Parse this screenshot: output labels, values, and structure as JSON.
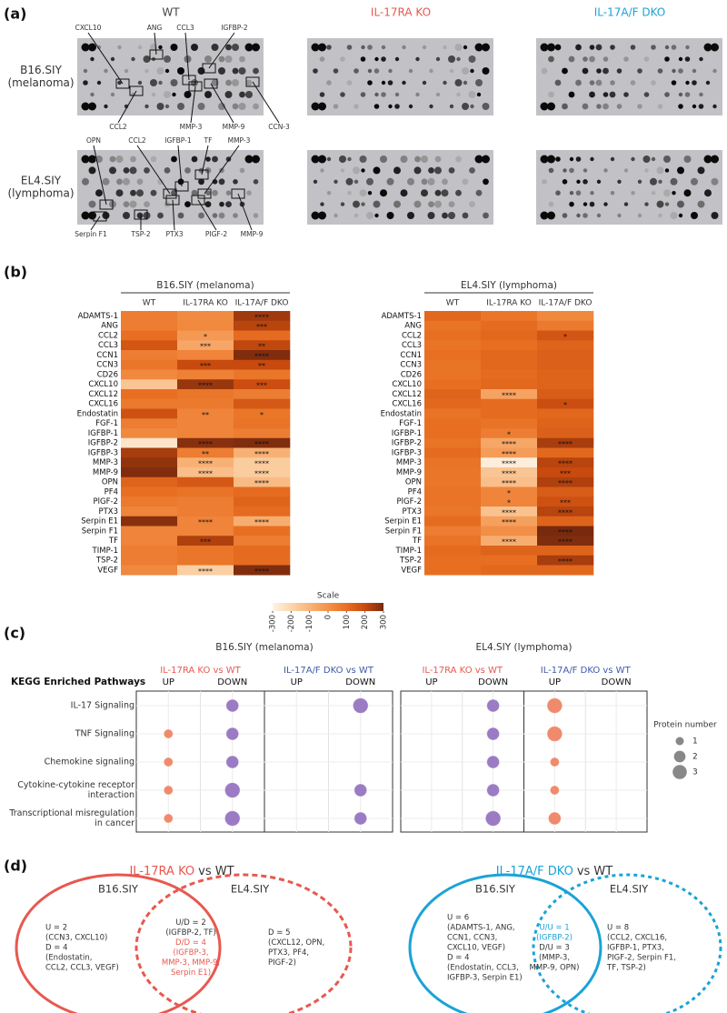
{
  "panel_labels": [
    "(a)",
    "(b)",
    "(c)",
    "(d)"
  ],
  "blots": {
    "columns": [
      {
        "label": "WT",
        "color": "#444444"
      },
      {
        "label": "IL-17RA KO",
        "color": "#e8584e"
      },
      {
        "label": "IL-17A/F DKO",
        "color": "#1aa3d6"
      }
    ],
    "rows": [
      {
        "label": [
          "B16.SIY",
          "(melanoma)"
        ],
        "annotations": [
          "CXCL10",
          "ANG",
          "CCL3",
          "IGFBP-2",
          "CCL2",
          "MMP-3",
          "MMP-9",
          "CCN-3"
        ]
      },
      {
        "label": [
          "EL4.SIY",
          "(lymphoma)"
        ],
        "annotations": [
          "OPN",
          "CCL2",
          "IGFBP-1",
          "TF",
          "MMP-3",
          "Serpin F1",
          "TSP-2",
          "PTX3",
          "PIGF-2",
          "MMP-9"
        ]
      }
    ]
  },
  "heatmaps": [
    {
      "title": "B16.SIY (melanoma)",
      "columns": [
        "WT",
        "IL-17RA KO",
        "IL-17A/F DKO"
      ],
      "rows": [
        {
          "name": "ADAMTS-1",
          "values": [
            60,
            20,
            250
          ],
          "stars": [
            null,
            null,
            "****"
          ]
        },
        {
          "name": "ANG",
          "values": [
            60,
            30,
            220
          ],
          "stars": [
            null,
            null,
            "***"
          ]
        },
        {
          "name": "CCL2",
          "values": [
            100,
            -20,
            110
          ],
          "stars": [
            null,
            "*",
            null
          ]
        },
        {
          "name": "CCL3",
          "values": [
            170,
            -60,
            210
          ],
          "stars": [
            null,
            "***",
            "**"
          ]
        },
        {
          "name": "CCN1",
          "values": [
            60,
            40,
            290
          ],
          "stars": [
            null,
            null,
            "****"
          ]
        },
        {
          "name": "CCN3",
          "values": [
            80,
            200,
            200
          ],
          "stars": [
            null,
            "***",
            "**"
          ]
        },
        {
          "name": "CD26",
          "values": [
            30,
            50,
            80
          ],
          "stars": [
            null,
            null,
            null
          ]
        },
        {
          "name": "CXCL10",
          "values": [
            -150,
            260,
            190
          ],
          "stars": [
            null,
            "****",
            "***"
          ]
        },
        {
          "name": "CXCL12",
          "values": [
            100,
            80,
            60
          ],
          "stars": [
            null,
            null,
            null
          ]
        },
        {
          "name": "CXCL16",
          "values": [
            70,
            70,
            160
          ],
          "stars": [
            null,
            null,
            null
          ]
        },
        {
          "name": "Endostatin",
          "values": [
            180,
            40,
            80
          ],
          "stars": [
            null,
            "**",
            "*"
          ]
        },
        {
          "name": "FGF-1",
          "values": [
            60,
            40,
            90
          ],
          "stars": [
            null,
            null,
            null
          ]
        },
        {
          "name": "IGFBP-1",
          "values": [
            30,
            40,
            60
          ],
          "stars": [
            null,
            null,
            null
          ]
        },
        {
          "name": "IGFBP-2",
          "values": [
            -250,
            280,
            290
          ],
          "stars": [
            null,
            "****",
            "****"
          ]
        },
        {
          "name": "IGFBP-3",
          "values": [
            240,
            60,
            -90
          ],
          "stars": [
            null,
            "**",
            "****"
          ]
        },
        {
          "name": "MMP-3",
          "values": [
            270,
            -90,
            -170
          ],
          "stars": [
            null,
            "****",
            "****"
          ]
        },
        {
          "name": "MMP-9",
          "values": [
            290,
            -130,
            -170
          ],
          "stars": [
            null,
            "****",
            "****"
          ]
        },
        {
          "name": "OPN",
          "values": [
            130,
            160,
            -120
          ],
          "stars": [
            null,
            null,
            "****"
          ]
        },
        {
          "name": "PF4",
          "values": [
            100,
            90,
            110
          ],
          "stars": [
            null,
            null,
            null
          ]
        },
        {
          "name": "PlGF-2",
          "values": [
            70,
            60,
            130
          ],
          "stars": [
            null,
            null,
            null
          ]
        },
        {
          "name": "PTX3",
          "values": [
            40,
            60,
            110
          ],
          "stars": [
            null,
            null,
            null
          ]
        },
        {
          "name": "Serpin E1",
          "values": [
            280,
            40,
            -80
          ],
          "stars": [
            null,
            "****",
            "****"
          ]
        },
        {
          "name": "Serpin F1",
          "values": [
            40,
            40,
            100
          ],
          "stars": [
            null,
            null,
            null
          ]
        },
        {
          "name": "TF",
          "values": [
            40,
            230,
            60
          ],
          "stars": [
            null,
            "***",
            null
          ]
        },
        {
          "name": "TIMP-1",
          "values": [
            60,
            80,
            110
          ],
          "stars": [
            null,
            null,
            null
          ]
        },
        {
          "name": "TSP-2",
          "values": [
            60,
            80,
            110
          ],
          "stars": [
            null,
            null,
            null
          ]
        },
        {
          "name": "VEGF",
          "values": [
            30,
            -180,
            290
          ],
          "stars": [
            null,
            "****",
            "****"
          ]
        }
      ]
    },
    {
      "title": "EL4.SIY (lymphoma)",
      "columns": [
        "WT",
        "IL-17RA KO",
        "IL-17A/F DKO"
      ],
      "rows": [
        {
          "name": "ADAMTS-1",
          "values": [
            120,
            80,
            30
          ],
          "stars": [
            null,
            null,
            null
          ]
        },
        {
          "name": "ANG",
          "values": [
            90,
            110,
            70
          ],
          "stars": [
            null,
            null,
            null
          ]
        },
        {
          "name": "CCL2",
          "values": [
            100,
            120,
            170
          ],
          "stars": [
            null,
            null,
            "*"
          ]
        },
        {
          "name": "CCL3",
          "values": [
            90,
            100,
            130
          ],
          "stars": [
            null,
            null,
            null
          ]
        },
        {
          "name": "CCN1",
          "values": [
            100,
            120,
            140
          ],
          "stars": [
            null,
            null,
            null
          ]
        },
        {
          "name": "CCN3",
          "values": [
            90,
            120,
            140
          ],
          "stars": [
            null,
            null,
            null
          ]
        },
        {
          "name": "CD26",
          "values": [
            90,
            110,
            130
          ],
          "stars": [
            null,
            null,
            null
          ]
        },
        {
          "name": "CXCL10",
          "values": [
            100,
            120,
            130
          ],
          "stars": [
            null,
            null,
            null
          ]
        },
        {
          "name": "CXCL12",
          "values": [
            130,
            -50,
            150
          ],
          "stars": [
            null,
            "****",
            null
          ]
        },
        {
          "name": "CXCL16",
          "values": [
            120,
            110,
            190
          ],
          "stars": [
            null,
            null,
            "*"
          ]
        },
        {
          "name": "Endostatin",
          "values": [
            90,
            110,
            120
          ],
          "stars": [
            null,
            null,
            null
          ]
        },
        {
          "name": "FGF-1",
          "values": [
            100,
            90,
            130
          ],
          "stars": [
            null,
            null,
            null
          ]
        },
        {
          "name": "IGFBP-1",
          "values": [
            100,
            60,
            140
          ],
          "stars": [
            null,
            "*",
            null
          ]
        },
        {
          "name": "IGFBP-2",
          "values": [
            90,
            -60,
            240
          ],
          "stars": [
            null,
            "****",
            "****"
          ]
        },
        {
          "name": "IGFBP-3",
          "values": [
            110,
            -30,
            120
          ],
          "stars": [
            null,
            "****",
            null
          ]
        },
        {
          "name": "MMP-3",
          "values": [
            90,
            -280,
            220
          ],
          "stars": [
            null,
            "****",
            "****"
          ]
        },
        {
          "name": "MMP-9",
          "values": [
            80,
            -150,
            200
          ],
          "stars": [
            null,
            "****",
            "***"
          ]
        },
        {
          "name": "OPN",
          "values": [
            80,
            -130,
            230
          ],
          "stars": [
            null,
            "****",
            "****"
          ]
        },
        {
          "name": "PF4",
          "values": [
            90,
            40,
            150
          ],
          "stars": [
            null,
            "*",
            null
          ]
        },
        {
          "name": "PlGF-2",
          "values": [
            90,
            40,
            180
          ],
          "stars": [
            null,
            "*",
            "***"
          ]
        },
        {
          "name": "PTX3",
          "values": [
            80,
            -140,
            220
          ],
          "stars": [
            null,
            "****",
            "****"
          ]
        },
        {
          "name": "Serpin E1",
          "values": [
            110,
            -40,
            130
          ],
          "stars": [
            null,
            "****",
            null
          ]
        },
        {
          "name": "Serpin F1",
          "values": [
            60,
            10,
            300
          ],
          "stars": [
            null,
            null,
            "****"
          ]
        },
        {
          "name": "TF",
          "values": [
            90,
            -80,
            290
          ],
          "stars": [
            null,
            "****",
            "****"
          ]
        },
        {
          "name": "TIMP-1",
          "values": [
            110,
            130,
            130
          ],
          "stars": [
            null,
            null,
            null
          ]
        },
        {
          "name": "TSP-2",
          "values": [
            100,
            100,
            240
          ],
          "stars": [
            null,
            null,
            "****"
          ]
        },
        {
          "name": "VEGF",
          "values": [
            100,
            120,
            120
          ],
          "stars": [
            null,
            null,
            null
          ]
        }
      ]
    }
  ],
  "colorbar": {
    "title": "Scale",
    "range": [
      -300,
      300
    ],
    "ticks": [
      -300,
      -200,
      -100,
      0,
      100,
      200,
      300
    ],
    "colors": [
      "#fdf3e7",
      "#fbd6ad",
      "#f8b47a",
      "#f3924a",
      "#e86f22",
      "#c84a0e",
      "#782a0e"
    ]
  },
  "dotplot": {
    "row_header": "KEGG Enriched Pathways",
    "pathways": [
      [
        "IL-17 Signaling"
      ],
      [
        "TNF Signaling"
      ],
      [
        "Chemokine signaling"
      ],
      [
        "Cytokine-cytokine receptor",
        "interaction"
      ],
      [
        "Transcriptional misregulation",
        "in cancer"
      ]
    ],
    "panels": [
      {
        "title": "B16.SIY (melanoma)",
        "comparisons": [
          {
            "label": "IL-17RA KO vs WT",
            "color": "#e8584e",
            "columns": [
              {
                "label": "UP",
                "color": "#f08a6c",
                "values": [
                  null,
                  1,
                  1,
                  1,
                  1
                ]
              },
              {
                "label": "DOWN",
                "color": "#9b7bc4",
                "values": [
                  2,
                  2,
                  2,
                  3,
                  3
                ]
              }
            ]
          },
          {
            "label": "IL-17A/F DKO vs WT",
            "color": "#3f5aa8",
            "columns": [
              {
                "label": "UP",
                "color": "#f08a6c",
                "values": [
                  null,
                  null,
                  null,
                  null,
                  null
                ]
              },
              {
                "label": "DOWN",
                "color": "#9b7bc4",
                "values": [
                  3,
                  null,
                  null,
                  2,
                  2
                ]
              }
            ]
          }
        ]
      },
      {
        "title": "EL4.SIY (lymphoma)",
        "comparisons": [
          {
            "label": "IL-17RA KO vs WT",
            "color": "#e8584e",
            "columns": [
              {
                "label": "UP",
                "color": "#f08a6c",
                "values": [
                  null,
                  null,
                  null,
                  null,
                  null
                ]
              },
              {
                "label": "DOWN",
                "color": "#9b7bc4",
                "values": [
                  2,
                  2,
                  2,
                  2,
                  3
                ]
              }
            ]
          },
          {
            "label": "IL-17A/F DKO vs WT",
            "color": "#3f5aa8",
            "columns": [
              {
                "label": "UP",
                "color": "#f08a6c",
                "values": [
                  3,
                  3,
                  1,
                  1,
                  2
                ]
              },
              {
                "label": "DOWN",
                "color": "#9b7bc4",
                "values": [
                  null,
                  null,
                  null,
                  null,
                  null
                ]
              }
            ]
          }
        ]
      }
    ],
    "legend": {
      "title": "Protein number",
      "sizes": [
        1,
        2,
        3
      ]
    }
  },
  "venns": [
    {
      "title_highlight": "IL-17RA KO",
      "title_rest": "vs WT",
      "color": "#e8584e",
      "sets": [
        "B16.SIY",
        "EL4.SIY"
      ],
      "regions": [
        [
          {
            "color": "#333333",
            "lines": [
              "U = 2",
              "(CCN3, CXCL10)",
              "D = 4",
              "(Endostatin,",
              "CCL2, CCL3, VEGF)"
            ]
          }
        ],
        [
          {
            "color": "#333333",
            "lines": [
              "U/D = 2",
              "(IGFBP-2, TF)"
            ]
          },
          {
            "color": "#e8584e",
            "lines": [
              "D/D = 4",
              "(IGFBP-3,",
              "MMP-3, MMP-9,",
              "Serpin E1)"
            ]
          }
        ],
        [
          {
            "color": "#333333",
            "lines": [
              "D = 5",
              "(CXCL12, OPN,",
              "PTX3, PF4,",
              "PIGF-2)"
            ]
          }
        ]
      ]
    },
    {
      "title_highlight": "IL-17A/F DKO",
      "title_rest": "vs WT",
      "color": "#1aa3d6",
      "sets": [
        "B16.SIY",
        "EL4.SIY"
      ],
      "regions": [
        [
          {
            "color": "#333333",
            "lines": [
              "U = 6",
              "(ADAMTS-1, ANG,",
              "CCN1, CCN3,",
              "CXCL10, VEGF)",
              "D = 4",
              "(Endostatin, CCL3,",
              "IGFBP-3, Serpin E1)"
            ]
          }
        ],
        [
          {
            "color": "#1aa3d6",
            "lines": [
              "U/U = 1",
              "(IGFBP-2)"
            ]
          },
          {
            "color": "#333333",
            "lines": [
              "D/U = 3",
              "(MMP-3,",
              "MMP-9, OPN)"
            ]
          }
        ],
        [
          {
            "color": "#333333",
            "lines": [
              "U = 8",
              "(CCL2, CXCL16,",
              "IGFBP-1, PTX3,",
              "PIGF-2, Serpin F1,",
              "TF, TSP-2)"
            ]
          }
        ]
      ]
    }
  ]
}
